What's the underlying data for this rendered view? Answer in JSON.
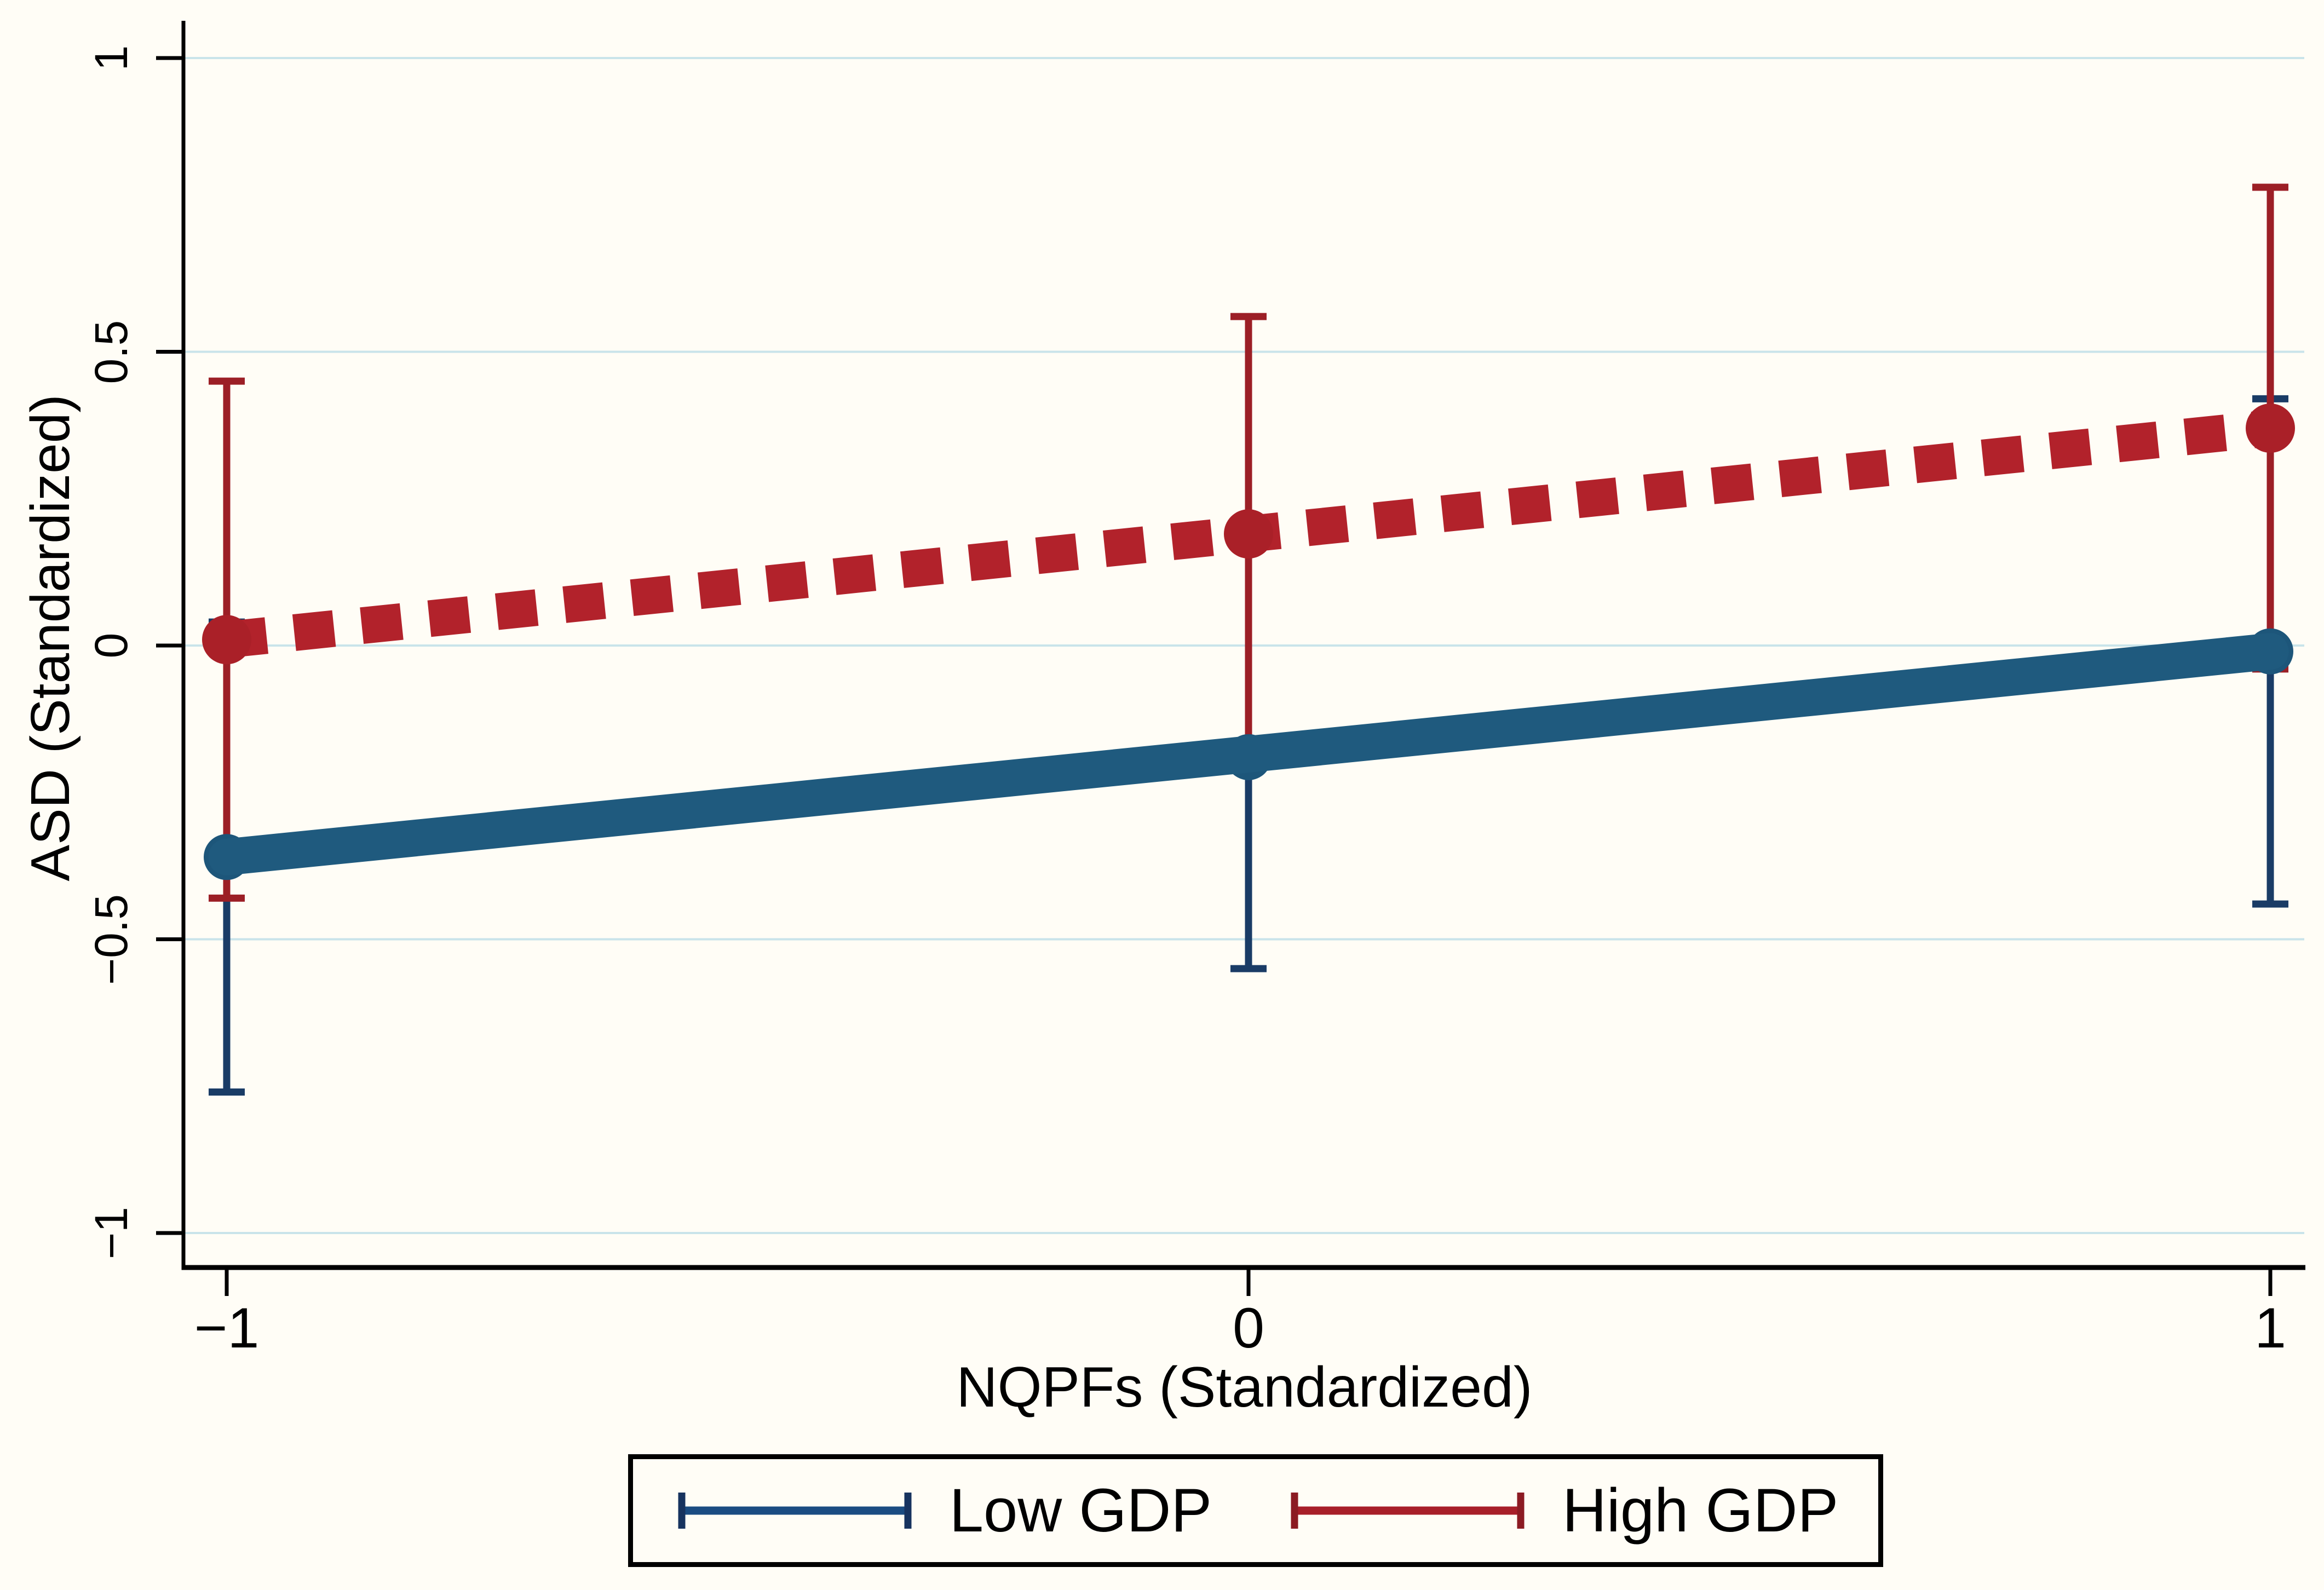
{
  "figure": {
    "background": "#fffdf6",
    "grid_color": "#c9e4ea",
    "axis_color": "#000000"
  },
  "axes": {
    "y": {
      "title": "ASD (Standardized)",
      "ticks": [
        {
          "v": 1,
          "label": "1"
        },
        {
          "v": 0.5,
          "label": "0.5"
        },
        {
          "v": 0,
          "label": "0"
        },
        {
          "v": -0.5,
          "label": "−0.5"
        },
        {
          "v": -1,
          "label": "−1"
        }
      ]
    },
    "x": {
      "title": "NQPFs (Standardized)",
      "ticks": [
        {
          "v": -1,
          "label": "−1"
        },
        {
          "v": 0,
          "label": "0"
        },
        {
          "v": 1,
          "label": "1"
        }
      ]
    }
  },
  "legend": {
    "items": [
      {
        "label": "Low GDP",
        "line_color": "#1b4c82",
        "cap_color": "#17335f"
      },
      {
        "label": "High GDP",
        "line_color": "#a81f29",
        "cap_color": "#8c1b23"
      }
    ]
  },
  "chart_data": {
    "type": "line",
    "x": [
      -1,
      0,
      1
    ],
    "series": [
      {
        "name": "Low GDP",
        "values": [
          -0.36,
          -0.19,
          -0.01
        ],
        "ci_low": [
          -0.76,
          -0.55,
          -0.44
        ],
        "ci_high": [
          0.04,
          0.17,
          0.42
        ],
        "line_style": "solid",
        "line_color": "#1f5a7e",
        "marker_color": "#1d567a",
        "errorbar_color": "#1a3c66"
      },
      {
        "name": "High GDP",
        "values": [
          0.01,
          0.19,
          0.37
        ],
        "ci_low": [
          -0.43,
          -0.18,
          -0.04
        ],
        "ci_high": [
          0.45,
          0.56,
          0.78
        ],
        "line_style": "dashed",
        "line_color": "#b2222b",
        "marker_color": "#aa2028",
        "errorbar_color": "#9c1f26"
      }
    ],
    "title": "",
    "xlabel": "NQPFs (Standardized)",
    "ylabel": "ASD (Standardized)",
    "xlim": [
      -1.04,
      1.04
    ],
    "ylim": [
      -1.06,
      1.06
    ],
    "yticks": [
      1,
      0.5,
      0,
      -0.5,
      -1
    ],
    "xticks": [
      -1,
      0,
      1
    ],
    "grid": "horizontal",
    "legend_position": "bottom"
  }
}
